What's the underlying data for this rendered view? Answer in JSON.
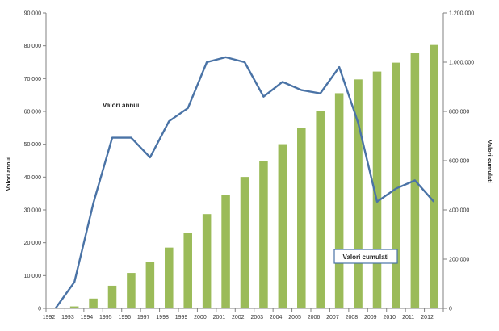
{
  "chart_data": {
    "type": "bar+line",
    "categories": [
      "1992",
      "1993",
      "1994",
      "1995",
      "1996",
      "1997",
      "1998",
      "1999",
      "2000",
      "2001",
      "2002",
      "2003",
      "2004",
      "2005",
      "2006",
      "2007",
      "2008",
      "2009",
      "2010",
      "2011",
      "2012"
    ],
    "series": [
      {
        "name": "Valori annui",
        "type": "line",
        "axis": "left",
        "color": "#4a73a6",
        "values": [
          0,
          8000,
          32000,
          52000,
          52000,
          46000,
          57000,
          61000,
          75000,
          76500,
          75000,
          64500,
          69000,
          66500,
          65500,
          73500,
          56500,
          32500,
          36500,
          39000,
          32500
        ]
      },
      {
        "name": "Valori cumulati",
        "type": "bar",
        "axis": "right",
        "color": "#9bbb59",
        "values": [
          0,
          8000,
          40000,
          92000,
          144000,
          190000,
          247000,
          308000,
          383000,
          460000,
          534000,
          599000,
          667000,
          734000,
          800000,
          874000,
          930000,
          962000,
          998000,
          1036000,
          1070000
        ]
      }
    ],
    "y_left": {
      "label": "Valori annui",
      "ylim": [
        0,
        90000
      ],
      "ticks": [
        "0",
        "10.000",
        "20.000",
        "30.000",
        "40.000",
        "50.000",
        "60.000",
        "70.000",
        "80.000",
        "90.000"
      ]
    },
    "y_right": {
      "label": "Valori cumulati",
      "ylim": [
        0,
        1200000
      ],
      "ticks": [
        "0",
        "200.000",
        "400.000",
        "600.000",
        "800.000",
        "1.000.000",
        "1.200.000"
      ]
    },
    "annotations": [
      {
        "text": "Valori annui",
        "boxed": false
      },
      {
        "text": "Valori cumulati",
        "boxed": true
      }
    ],
    "grid": false,
    "legend": "none"
  }
}
